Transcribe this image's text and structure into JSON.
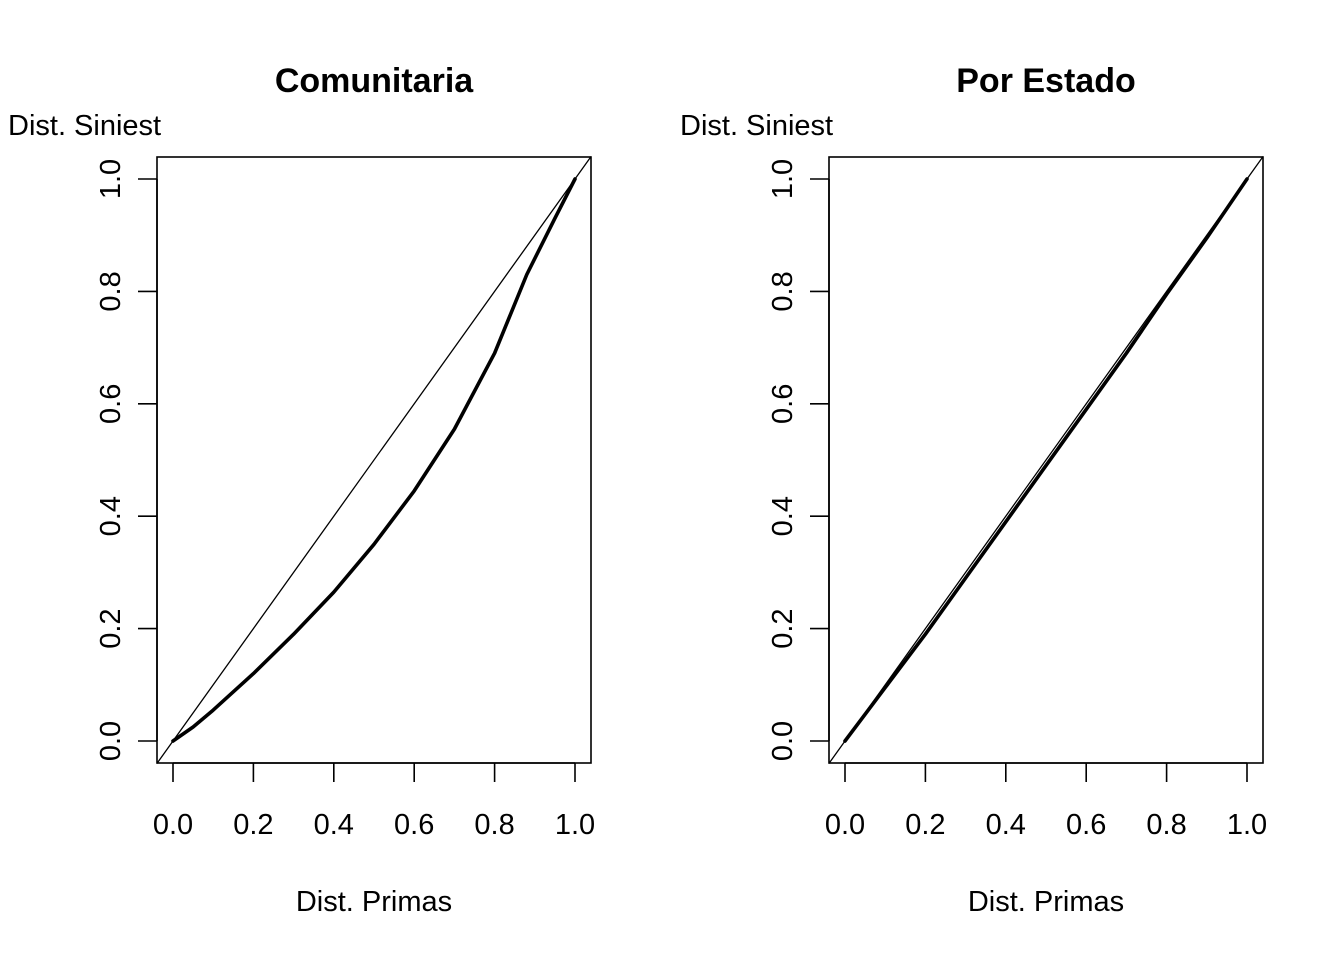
{
  "chart_data": [
    {
      "type": "line",
      "title": "Comunitaria",
      "xlabel": "Dist. Primas",
      "ylabel": "Dist. Siniest",
      "xlim": [
        0,
        1
      ],
      "ylim": [
        0,
        1
      ],
      "xticks": [
        "0.0",
        "0.2",
        "0.4",
        "0.6",
        "0.8",
        "1.0"
      ],
      "yticks": [
        "0.0",
        "0.2",
        "0.4",
        "0.6",
        "0.8",
        "1.0"
      ],
      "grid": false,
      "series": [
        {
          "role": "equality line",
          "x": [
            0,
            1
          ],
          "y": [
            0,
            1
          ]
        },
        {
          "role": "curve",
          "x": [
            0,
            0.05,
            0.1,
            0.2,
            0.3,
            0.4,
            0.5,
            0.6,
            0.7,
            0.8,
            0.88,
            0.95,
            1.0
          ],
          "y": [
            0,
            0.025,
            0.055,
            0.12,
            0.19,
            0.265,
            0.35,
            0.445,
            0.555,
            0.69,
            0.83,
            0.93,
            1.0
          ]
        }
      ]
    },
    {
      "type": "line",
      "title": "Por Estado",
      "xlabel": "Dist. Primas",
      "ylabel": "Dist. Siniest",
      "xlim": [
        0,
        1
      ],
      "ylim": [
        0,
        1
      ],
      "xticks": [
        "0.0",
        "0.2",
        "0.4",
        "0.6",
        "0.8",
        "1.0"
      ],
      "yticks": [
        "0.0",
        "0.2",
        "0.4",
        "0.6",
        "0.8",
        "1.0"
      ],
      "grid": false,
      "series": [
        {
          "role": "equality line",
          "x": [
            0,
            1
          ],
          "y": [
            0,
            1
          ]
        },
        {
          "role": "curve",
          "x": [
            0,
            0.1,
            0.2,
            0.3,
            0.4,
            0.5,
            0.6,
            0.7,
            0.8,
            0.9,
            1.0
          ],
          "y": [
            0,
            0.095,
            0.19,
            0.29,
            0.39,
            0.49,
            0.59,
            0.69,
            0.795,
            0.895,
            1.0
          ]
        }
      ]
    }
  ]
}
